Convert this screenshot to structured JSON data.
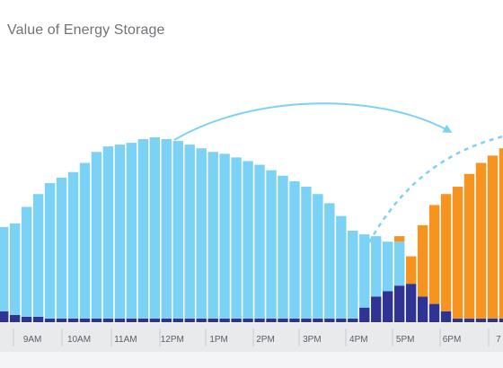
{
  "page": {
    "title": "Value of Energy Storage"
  },
  "chart_data": {
    "type": "bar",
    "title": "Value of Energy Storage",
    "xlabel": "",
    "ylabel": "",
    "ylim": [
      0,
      100
    ],
    "grid": false,
    "legend": "none",
    "ticks": [
      {
        "label": "9AM",
        "at": 2.5
      },
      {
        "label": "10AM",
        "at": 6.5
      },
      {
        "label": "11AM",
        "at": 10.5
      },
      {
        "label": "12PM",
        "at": 14.5
      },
      {
        "label": "1PM",
        "at": 18.5
      },
      {
        "label": "2PM",
        "at": 22.5
      },
      {
        "label": "3PM",
        "at": 26.5
      },
      {
        "label": "4PM",
        "at": 30.5
      },
      {
        "label": "5PM",
        "at": 34.5
      },
      {
        "label": "6PM",
        "at": 38.5
      },
      {
        "label": "7",
        "at": 42.5
      }
    ],
    "series": [
      {
        "color": "#7cd2f5",
        "values": [
          46,
          50,
          60,
          67,
          74,
          77,
          80,
          85,
          91,
          94,
          95,
          96,
          98,
          99,
          98,
          97,
          95,
          93,
          91,
          90,
          88,
          86,
          84,
          81,
          78,
          75,
          72,
          68,
          63,
          56,
          48,
          40,
          33,
          27,
          24,
          0,
          0,
          0,
          0,
          0,
          0,
          0,
          0,
          0
        ]
      },
      {
        "color": "#2f3494",
        "values": [
          6,
          4,
          3,
          3,
          2,
          2,
          2,
          2,
          2,
          2,
          2,
          2,
          2,
          2,
          2,
          2,
          2,
          2,
          2,
          2,
          2,
          2,
          2,
          2,
          2,
          2,
          2,
          2,
          2,
          2,
          2,
          8,
          14,
          17,
          20,
          21,
          14,
          10,
          6,
          2,
          2,
          2,
          2,
          2
        ]
      },
      {
        "color": "#f6941f",
        "values": [
          0,
          0,
          0,
          0,
          0,
          0,
          0,
          0,
          0,
          0,
          0,
          0,
          0,
          0,
          0,
          0,
          0,
          0,
          0,
          0,
          0,
          0,
          0,
          0,
          0,
          0,
          0,
          0,
          0,
          0,
          0,
          0,
          0,
          0,
          3,
          15,
          39,
          54,
          64,
          72,
          79,
          85,
          89,
          93
        ]
      }
    ]
  },
  "colors": {
    "arrow": "#7cd2f5",
    "axis_band": "#e8eaec",
    "tick_text": "#5b5f66"
  },
  "arrows": [
    {
      "style": "solid",
      "description": "arrow-right"
    },
    {
      "style": "dashed",
      "description": "arrow-up-right"
    }
  ]
}
